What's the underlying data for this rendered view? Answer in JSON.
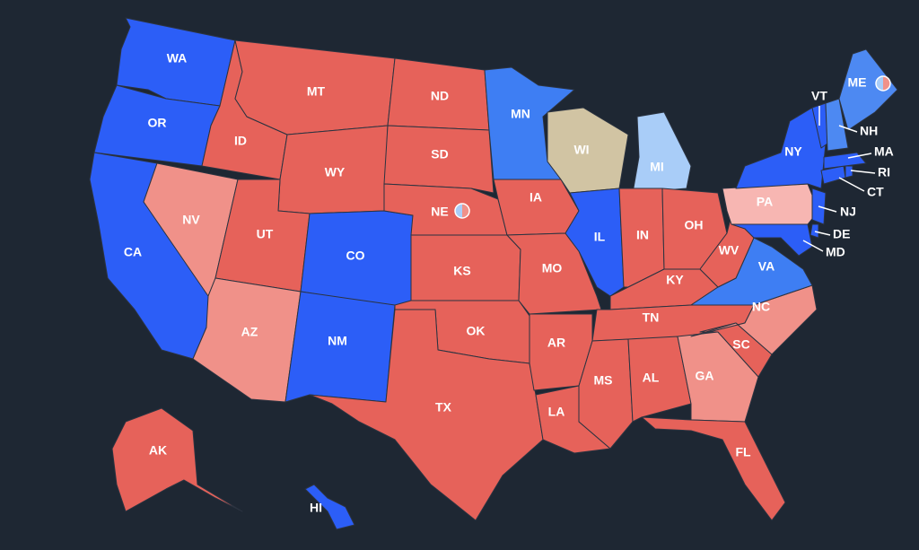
{
  "states": [
    {
      "abbr": "WA",
      "color": "#2c5ef7"
    },
    {
      "abbr": "OR",
      "color": "#2c5ef7"
    },
    {
      "abbr": "CA",
      "color": "#2c5ef7"
    },
    {
      "abbr": "ID",
      "color": "#e6625a"
    },
    {
      "abbr": "NV",
      "color": "#f09189"
    },
    {
      "abbr": "MT",
      "color": "#e6625a"
    },
    {
      "abbr": "WY",
      "color": "#e6625a"
    },
    {
      "abbr": "UT",
      "color": "#e6625a"
    },
    {
      "abbr": "AZ",
      "color": "#f09189"
    },
    {
      "abbr": "CO",
      "color": "#2c5ef7"
    },
    {
      "abbr": "NM",
      "color": "#2c5ef7"
    },
    {
      "abbr": "ND",
      "color": "#e6625a"
    },
    {
      "abbr": "SD",
      "color": "#e6625a"
    },
    {
      "abbr": "NE",
      "color": "#e6625a"
    },
    {
      "abbr": "KS",
      "color": "#e6625a"
    },
    {
      "abbr": "OK",
      "color": "#e6625a"
    },
    {
      "abbr": "TX",
      "color": "#e6625a"
    },
    {
      "abbr": "MN",
      "color": "#3e7ef3"
    },
    {
      "abbr": "IA",
      "color": "#e6625a"
    },
    {
      "abbr": "MO",
      "color": "#e6625a"
    },
    {
      "abbr": "AR",
      "color": "#e6625a"
    },
    {
      "abbr": "LA",
      "color": "#e6625a"
    },
    {
      "abbr": "WI",
      "color": "#d1c4a3"
    },
    {
      "abbr": "IL",
      "color": "#2c5ef7"
    },
    {
      "abbr": "MI",
      "color": "#a9cdf8"
    },
    {
      "abbr": "IN",
      "color": "#e6625a"
    },
    {
      "abbr": "OH",
      "color": "#e6625a"
    },
    {
      "abbr": "KY",
      "color": "#e6625a"
    },
    {
      "abbr": "TN",
      "color": "#e6625a"
    },
    {
      "abbr": "MS",
      "color": "#e6625a"
    },
    {
      "abbr": "AL",
      "color": "#e6625a"
    },
    {
      "abbr": "GA",
      "color": "#f09189"
    },
    {
      "abbr": "FL",
      "color": "#e6625a"
    },
    {
      "abbr": "SC",
      "color": "#e6625a"
    },
    {
      "abbr": "NC",
      "color": "#f09189"
    },
    {
      "abbr": "VA",
      "color": "#3e7ef3"
    },
    {
      "abbr": "WV",
      "color": "#e6625a"
    },
    {
      "abbr": "PA",
      "color": "#f7b6b2"
    },
    {
      "abbr": "NY",
      "color": "#2c5ef7"
    },
    {
      "abbr": "NJ",
      "color": "#2c5ef7"
    },
    {
      "abbr": "DE",
      "color": "#2c5ef7"
    },
    {
      "abbr": "MD",
      "color": "#2c5ef7"
    },
    {
      "abbr": "CT",
      "color": "#2c5ef7"
    },
    {
      "abbr": "RI",
      "color": "#2c5ef7"
    },
    {
      "abbr": "MA",
      "color": "#2c5ef7"
    },
    {
      "abbr": "VT",
      "color": "#2c5ef7"
    },
    {
      "abbr": "NH",
      "color": "#4d89f2"
    },
    {
      "abbr": "ME",
      "color": "#4d89f2"
    },
    {
      "abbr": "AK",
      "color": "#e6625a"
    },
    {
      "abbr": "HI",
      "color": "#2c5ef7"
    }
  ]
}
